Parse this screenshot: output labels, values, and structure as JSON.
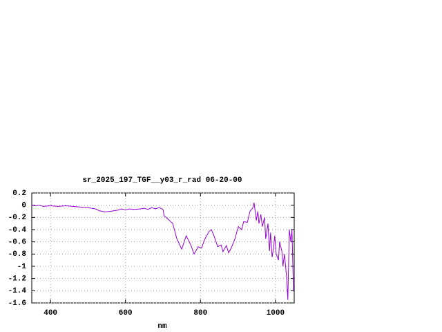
{
  "chart_data": {
    "type": "line",
    "title": "sr_2025_197_TGF__y03_r_rad 06-20-00",
    "xlabel": "nm",
    "x": [
      350,
      360,
      370,
      380,
      400,
      420,
      440,
      460,
      480,
      500,
      520,
      530,
      545,
      560,
      580,
      590,
      600,
      610,
      620,
      640,
      650,
      660,
      670,
      680,
      690,
      700,
      703,
      726,
      737,
      750,
      762,
      774,
      783,
      794,
      803,
      812,
      823,
      829,
      836,
      846,
      855,
      860,
      869,
      875,
      882,
      892,
      901,
      910,
      915,
      925,
      932,
      939,
      943,
      949,
      953,
      956,
      961,
      965,
      971,
      974,
      980,
      984,
      987,
      991,
      995,
      998,
      1002,
      1008,
      1011,
      1017,
      1020,
      1024,
      1030,
      1033,
      1037,
      1041,
      1044,
      1048
    ],
    "series": [
      {
        "name": "sr_2025_197_TGF__y03_r_rad",
        "color": "#9400d3",
        "values": [
          0.0,
          -0.01,
          0.0,
          -0.02,
          -0.01,
          -0.02,
          -0.01,
          -0.02,
          -0.03,
          -0.04,
          -0.06,
          -0.09,
          -0.11,
          -0.1,
          -0.08,
          -0.06,
          -0.08,
          -0.06,
          -0.07,
          -0.06,
          -0.05,
          -0.07,
          -0.04,
          -0.06,
          -0.04,
          -0.07,
          -0.17,
          -0.3,
          -0.55,
          -0.72,
          -0.5,
          -0.65,
          -0.8,
          -0.68,
          -0.7,
          -0.55,
          -0.43,
          -0.4,
          -0.5,
          -0.68,
          -0.65,
          -0.76,
          -0.66,
          -0.78,
          -0.7,
          -0.55,
          -0.35,
          -0.4,
          -0.27,
          -0.28,
          -0.1,
          -0.05,
          0.04,
          -0.25,
          -0.1,
          -0.3,
          -0.15,
          -0.35,
          -0.2,
          -0.55,
          -0.3,
          -0.75,
          -0.45,
          -0.85,
          -0.7,
          -0.5,
          -0.8,
          -0.9,
          -0.6,
          -0.75,
          -1.0,
          -0.8,
          -1.2,
          -1.55,
          -0.4,
          -0.6,
          -0.4,
          -1.4
        ]
      }
    ],
    "xlim": [
      350,
      1050
    ],
    "xticks": [
      400,
      600,
      800,
      1000
    ],
    "ylim": [
      -1.6,
      0.2
    ],
    "yticks": [
      0.2,
      0,
      -0.2,
      -0.4,
      -0.6,
      -0.8,
      -1,
      -1.2,
      -1.4,
      -1.6
    ],
    "grid": true
  }
}
